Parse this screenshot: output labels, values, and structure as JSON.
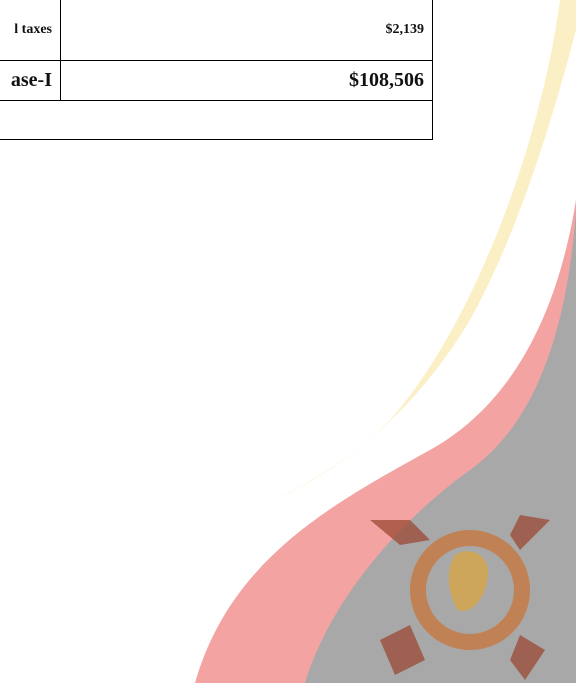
{
  "table": {
    "rows": [
      [
        "l taxes",
        "$2,139"
      ],
      [
        "ase-I",
        "$108,506"
      ]
    ]
  }
}
